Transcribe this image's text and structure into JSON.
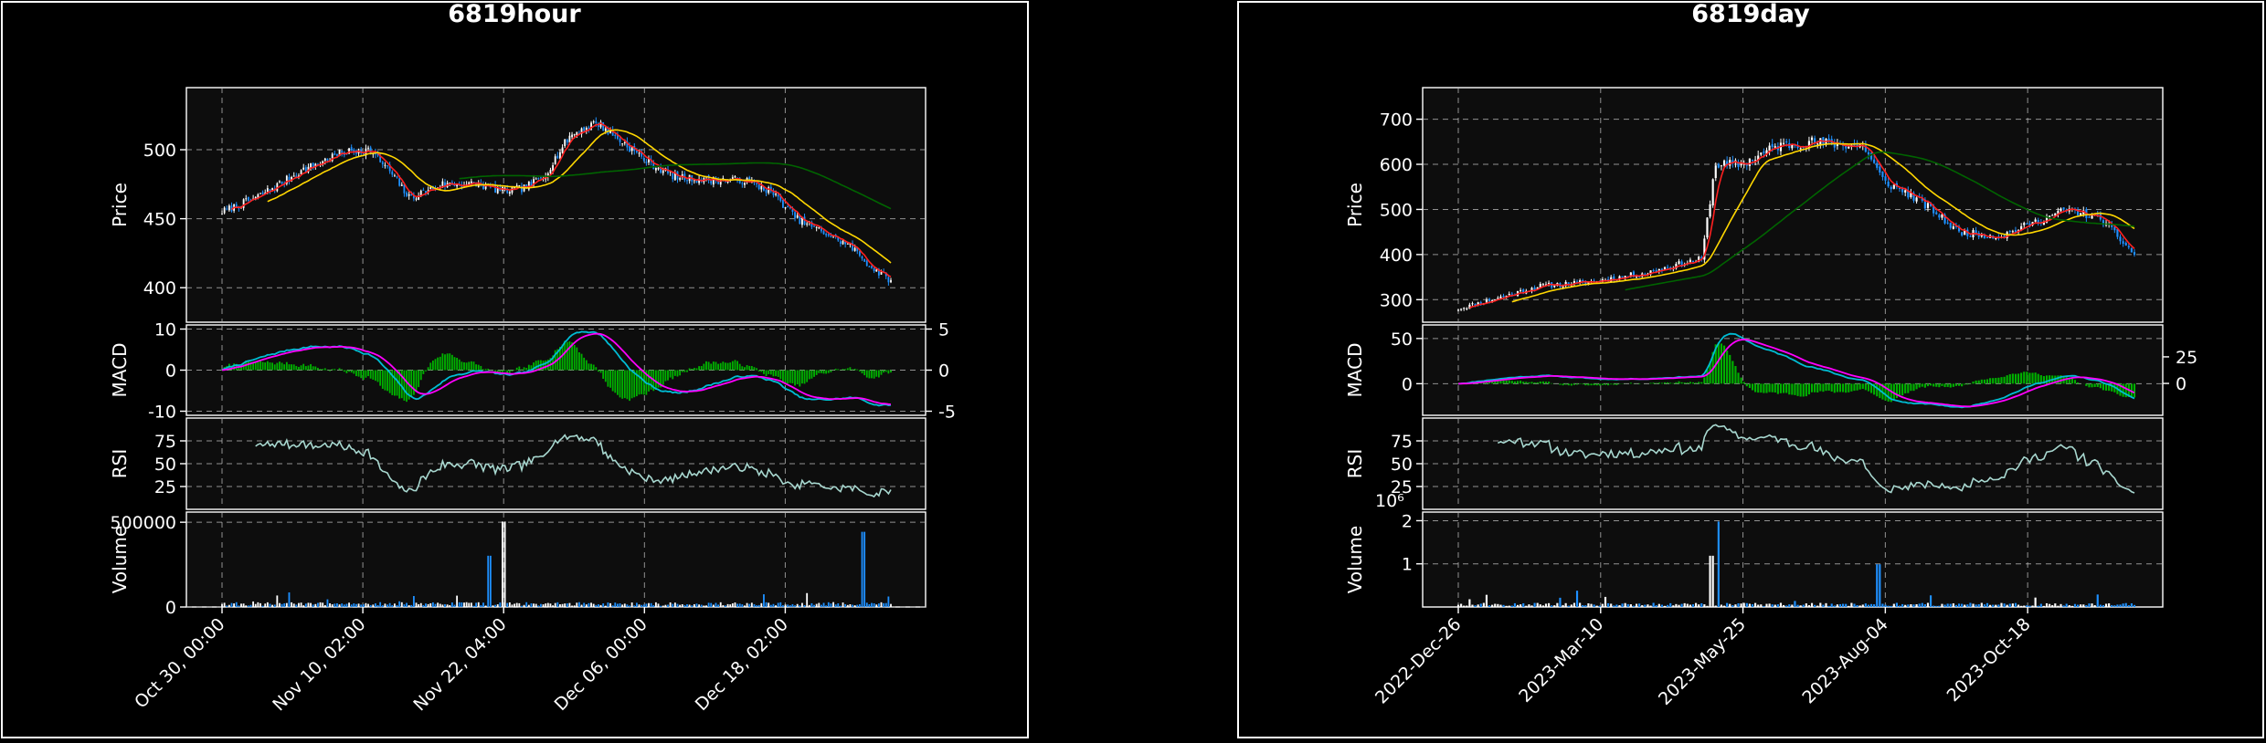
{
  "chart_data": [
    {
      "type": "line",
      "title": "6819hour",
      "x_ticks": [
        "Oct 30, 00:00",
        "Nov 10, 02:00",
        "Nov 22, 04:00",
        "Dec 06, 00:00",
        "Dec 18, 02:00"
      ],
      "panels": {
        "price": {
          "ylabel": "Price",
          "ylim": [
            375,
            545
          ],
          "yticks": [
            400,
            450,
            500
          ],
          "close_anchors": [
            [
              0,
              455
            ],
            [
              5,
              465
            ],
            [
              12,
              485
            ],
            [
              18,
              498
            ],
            [
              22,
              500
            ],
            [
              25,
              485
            ],
            [
              28,
              465
            ],
            [
              33,
              475
            ],
            [
              38,
              475
            ],
            [
              42,
              470
            ],
            [
              45,
              472
            ],
            [
              48,
              480
            ],
            [
              52,
              510
            ],
            [
              56,
              520
            ],
            [
              60,
              505
            ],
            [
              64,
              490
            ],
            [
              68,
              480
            ],
            [
              73,
              478
            ],
            [
              78,
              478
            ],
            [
              82,
              470
            ],
            [
              86,
              450
            ],
            [
              90,
              440
            ],
            [
              94,
              430
            ],
            [
              97,
              415
            ],
            [
              100,
              405
            ]
          ]
        },
        "macd": {
          "ylabel": "MACD",
          "ylim": [
            -11,
            11
          ],
          "yticks": [
            -10,
            0,
            10
          ],
          "yticks_right": [
            -5,
            0,
            5
          ]
        },
        "rsi": {
          "ylabel": "RSI",
          "ylim": [
            0,
            100
          ],
          "yticks": [
            25,
            50,
            75
          ]
        },
        "volume": {
          "ylabel": "Volume",
          "ylim": [
            0,
            560000
          ],
          "yticks": [
            0,
            500000
          ],
          "ytick_labels": [
            "0",
            "500000"
          ]
        }
      }
    },
    {
      "type": "line",
      "title": "6819day",
      "x_ticks": [
        "2022-Dec-26",
        "2023-Mar-10",
        "2023-May-25",
        "2023-Aug-04",
        "2023-Oct-18"
      ],
      "panels": {
        "price": {
          "ylabel": "Price",
          "ylim": [
            250,
            770
          ],
          "yticks": [
            300,
            400,
            500,
            600,
            700
          ],
          "close_anchors": [
            [
              0,
              280
            ],
            [
              5,
              300
            ],
            [
              12,
              330
            ],
            [
              20,
              340
            ],
            [
              28,
              360
            ],
            [
              33,
              380
            ],
            [
              36,
              390
            ],
            [
              38,
              600
            ],
            [
              42,
              600
            ],
            [
              47,
              640
            ],
            [
              52,
              650
            ],
            [
              60,
              640
            ],
            [
              63,
              560
            ],
            [
              66,
              540
            ],
            [
              70,
              500
            ],
            [
              74,
              450
            ],
            [
              80,
              440
            ],
            [
              85,
              470
            ],
            [
              90,
              500
            ],
            [
              95,
              480
            ],
            [
              100,
              400
            ]
          ]
        },
        "macd": {
          "ylabel": "MACD",
          "ylim": [
            -35,
            65
          ],
          "yticks": [
            0,
            50
          ],
          "yticks_right": [
            0,
            25
          ]
        },
        "rsi": {
          "ylabel": "RSI",
          "ylim": [
            0,
            100
          ],
          "yticks": [
            25,
            50,
            75
          ]
        },
        "volume": {
          "ylabel": "Volume",
          "ylim": [
            0,
            2200000
          ],
          "yticks": [
            1000000,
            2000000
          ],
          "ytick_labels": [
            "1",
            "2"
          ],
          "scale_label": "10⁶"
        }
      }
    }
  ],
  "colors": {
    "up_candle": "#ffffff",
    "down_candle": "#1e90ff",
    "ma_fast": "#ff2020",
    "ma_mid": "#ffd700",
    "ma_slow": "#006400",
    "macd_line": "#00bcd4",
    "signal_line": "#ff00ff",
    "histogram": "#00b000",
    "rsi_line": "#a8d8d0"
  }
}
